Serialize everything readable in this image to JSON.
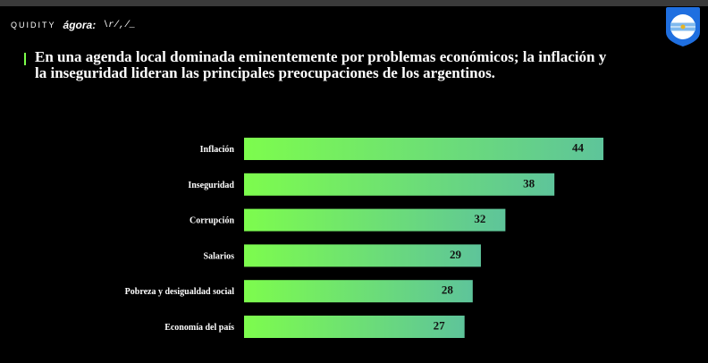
{
  "header": {
    "logo_a": "QUIDITY",
    "logo_b": "ágora:",
    "logo_c": "\\r/,/_"
  },
  "chart_data": {
    "type": "bar",
    "orientation": "horizontal",
    "title": "En una agenda local dominada eminentemente por problemas económicos; la inflación y la inseguridad lideran las principales preocupaciones de los argentinos.",
    "categories": [
      "Inflación",
      "Inseguridad",
      "Corrupción",
      "Salarios",
      "Pobreza y desigualdad social",
      "Economía del país"
    ],
    "values": [
      44,
      38,
      32,
      29,
      28,
      27
    ],
    "xlim": [
      0,
      44
    ],
    "grid": false,
    "legend": "none",
    "colors": {
      "bar_start": "#7dfc4d",
      "bar_end": "#5ec49a",
      "accent": "#7cff4a",
      "badge": "#1f6fe0"
    }
  }
}
